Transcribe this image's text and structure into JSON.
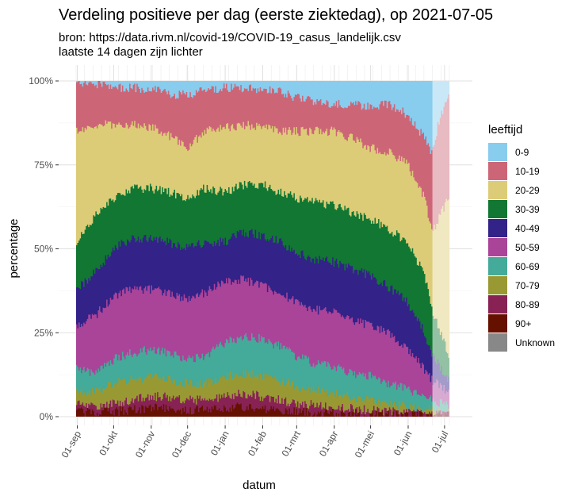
{
  "chart_data": {
    "type": "area",
    "title": "Verdeling positieve per dag (eerste ziektedag), op 2021-07-05",
    "subtitle_lines": [
      "bron: https://data.rivm.nl/covid-19/COVID-19_casus_landelijk.csv",
      "laatste 14 dagen zijn lichter"
    ],
    "xlabel": "datum",
    "ylabel": "percentage",
    "ylim": [
      0,
      1
    ],
    "y_ticks": [
      {
        "value": 0,
        "label": "0%"
      },
      {
        "value": 0.25,
        "label": "25%"
      },
      {
        "value": 0.5,
        "label": "50%"
      },
      {
        "value": 0.75,
        "label": "75%"
      },
      {
        "value": 1,
        "label": "100%"
      }
    ],
    "x_range": [
      "2020-08-31",
      "2021-07-05"
    ],
    "x_ticks": [
      {
        "date": "2020-09-01",
        "label": "01-sep"
      },
      {
        "date": "2020-10-01",
        "label": "01-okt"
      },
      {
        "date": "2020-11-01",
        "label": "01-nov"
      },
      {
        "date": "2020-12-01",
        "label": "01-dec"
      },
      {
        "date": "2021-01-01",
        "label": "01-jan"
      },
      {
        "date": "2021-02-01",
        "label": "01-feb"
      },
      {
        "date": "2021-03-01",
        "label": "01-mrt"
      },
      {
        "date": "2021-04-01",
        "label": "01-apr"
      },
      {
        "date": "2021-05-01",
        "label": "01-mei"
      },
      {
        "date": "2021-06-01",
        "label": "01-jun"
      },
      {
        "date": "2021-07-01",
        "label": "01-jul"
      }
    ],
    "lighter_from": "2021-06-21",
    "grid": true,
    "legend": {
      "title": "leeftijd",
      "position": "right",
      "items": [
        {
          "label": "0-9",
          "color": "#88CCEE"
        },
        {
          "label": "10-19",
          "color": "#CC6677"
        },
        {
          "label": "20-29",
          "color": "#DDCC77"
        },
        {
          "label": "30-39",
          "color": "#117733"
        },
        {
          "label": "40-49",
          "color": "#332288"
        },
        {
          "label": "50-59",
          "color": "#AA4499"
        },
        {
          "label": "60-69",
          "color": "#44AA99"
        },
        {
          "label": "70-79",
          "color": "#999933"
        },
        {
          "label": "80-89",
          "color": "#882255"
        },
        {
          "label": "90+",
          "color": "#661100"
        },
        {
          "label": "Unknown",
          "color": "#888888"
        }
      ]
    },
    "stack_order_bottom_to_top": [
      "90+",
      "80-89",
      "70-79",
      "60-69",
      "50-59",
      "40-49",
      "30-39",
      "20-29",
      "10-19",
      "0-9"
    ],
    "cumulative_upper_bounds": [
      {
        "date": "2020-08-31",
        "b": [
          0.015,
          0.04,
          0.08,
          0.14,
          0.27,
          0.38,
          0.52,
          0.85,
          0.99,
          1.0
        ]
      },
      {
        "date": "2020-09-15",
        "b": [
          0.012,
          0.03,
          0.07,
          0.13,
          0.3,
          0.43,
          0.6,
          0.87,
          0.99,
          1.0
        ]
      },
      {
        "date": "2020-10-01",
        "b": [
          0.015,
          0.04,
          0.1,
          0.17,
          0.36,
          0.5,
          0.65,
          0.87,
          0.98,
          1.0
        ]
      },
      {
        "date": "2020-10-15",
        "b": [
          0.02,
          0.05,
          0.11,
          0.19,
          0.38,
          0.53,
          0.68,
          0.87,
          0.98,
          1.0
        ]
      },
      {
        "date": "2020-11-01",
        "b": [
          0.025,
          0.06,
          0.12,
          0.2,
          0.38,
          0.53,
          0.68,
          0.86,
          0.975,
          1.0
        ]
      },
      {
        "date": "2020-11-15",
        "b": [
          0.025,
          0.06,
          0.11,
          0.19,
          0.37,
          0.52,
          0.67,
          0.84,
          0.96,
          1.0
        ]
      },
      {
        "date": "2020-12-01",
        "b": [
          0.02,
          0.05,
          0.1,
          0.17,
          0.35,
          0.5,
          0.65,
          0.8,
          0.96,
          1.0
        ]
      },
      {
        "date": "2020-12-15",
        "b": [
          0.02,
          0.05,
          0.1,
          0.18,
          0.37,
          0.52,
          0.68,
          0.85,
          0.97,
          1.0
        ]
      },
      {
        "date": "2021-01-01",
        "b": [
          0.025,
          0.06,
          0.12,
          0.22,
          0.4,
          0.52,
          0.67,
          0.86,
          0.98,
          1.0
        ]
      },
      {
        "date": "2021-01-15",
        "b": [
          0.03,
          0.07,
          0.13,
          0.24,
          0.41,
          0.55,
          0.69,
          0.87,
          0.98,
          1.0
        ]
      },
      {
        "date": "2021-02-01",
        "b": [
          0.025,
          0.06,
          0.12,
          0.23,
          0.39,
          0.54,
          0.69,
          0.86,
          0.97,
          1.0
        ]
      },
      {
        "date": "2021-02-15",
        "b": [
          0.02,
          0.05,
          0.11,
          0.21,
          0.37,
          0.52,
          0.67,
          0.85,
          0.97,
          1.0
        ]
      },
      {
        "date": "2021-03-01",
        "b": [
          0.015,
          0.04,
          0.09,
          0.18,
          0.34,
          0.49,
          0.65,
          0.85,
          0.95,
          1.0
        ]
      },
      {
        "date": "2021-03-15",
        "b": [
          0.012,
          0.035,
          0.08,
          0.16,
          0.32,
          0.47,
          0.64,
          0.85,
          0.94,
          1.0
        ]
      },
      {
        "date": "2021-04-01",
        "b": [
          0.01,
          0.03,
          0.07,
          0.15,
          0.31,
          0.46,
          0.63,
          0.85,
          0.93,
          1.0
        ]
      },
      {
        "date": "2021-04-15",
        "b": [
          0.008,
          0.025,
          0.06,
          0.13,
          0.29,
          0.44,
          0.61,
          0.83,
          0.93,
          1.0
        ]
      },
      {
        "date": "2021-05-01",
        "b": [
          0.006,
          0.02,
          0.05,
          0.12,
          0.27,
          0.42,
          0.59,
          0.8,
          0.92,
          1.0
        ]
      },
      {
        "date": "2021-05-15",
        "b": [
          0.005,
          0.015,
          0.04,
          0.1,
          0.25,
          0.39,
          0.56,
          0.79,
          0.93,
          1.0
        ]
      },
      {
        "date": "2021-06-01",
        "b": [
          0.004,
          0.012,
          0.03,
          0.08,
          0.2,
          0.34,
          0.52,
          0.75,
          0.9,
          1.0
        ]
      },
      {
        "date": "2021-06-15",
        "b": [
          0.003,
          0.01,
          0.025,
          0.06,
          0.14,
          0.25,
          0.42,
          0.65,
          0.83,
          1.0
        ]
      },
      {
        "date": "2021-06-21",
        "b": [
          0.003,
          0.008,
          0.02,
          0.05,
          0.11,
          0.19,
          0.32,
          0.55,
          0.78,
          1.0
        ]
      },
      {
        "date": "2021-06-28",
        "b": [
          0.002,
          0.006,
          0.015,
          0.04,
          0.09,
          0.15,
          0.25,
          0.6,
          0.9,
          1.0
        ]
      },
      {
        "date": "2021-07-05",
        "b": [
          0.002,
          0.005,
          0.01,
          0.03,
          0.07,
          0.11,
          0.18,
          0.65,
          0.95,
          1.0
        ]
      }
    ]
  }
}
